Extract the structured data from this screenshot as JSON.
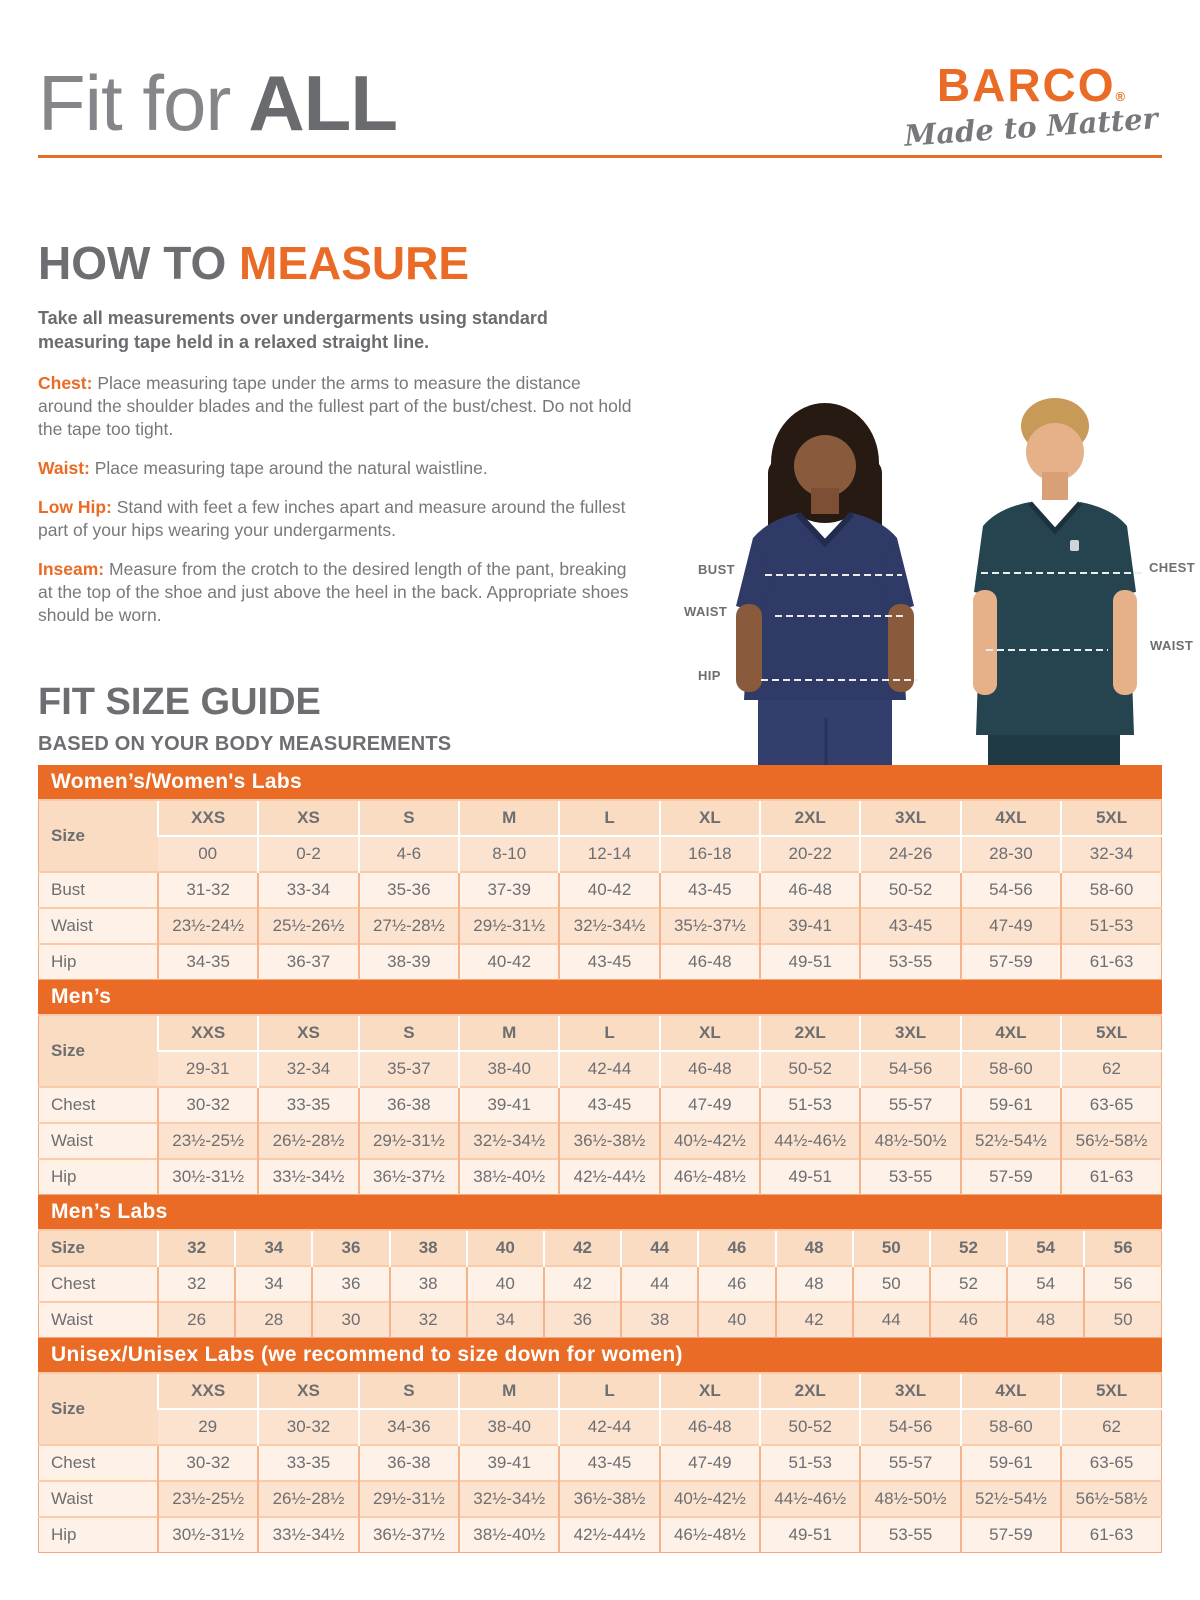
{
  "colors": {
    "brand_orange": "#E96B25",
    "heading_gray": "#6D6E71",
    "light_gray": "#84868A",
    "header_peach": "#FADCC2",
    "row_medium_peach": "#FBE3D0",
    "row_light_peach": "#FDF1E8",
    "woman_scrub_navy": "#2F3A66",
    "man_scrub_teal": "#264350"
  },
  "header": {
    "title_light": "Fit for",
    "title_bold": "ALL",
    "brand": "BARCO",
    "brand_reg": "®",
    "brand_tagline": "Made to Matter"
  },
  "how_to_measure": {
    "title_gray": "HOW TO",
    "title_orange": "MEASURE",
    "intro": "Take all measurements over undergarments using standard measuring tape held in a relaxed straight line.",
    "steps": [
      {
        "label": "Chest:",
        "text": "Place measuring tape under the arms to measure the distance around the shoulder blades and the fullest part of the bust/chest. Do not hold the tape too tight."
      },
      {
        "label": "Waist:",
        "text": "Place measuring tape around the natural waistline."
      },
      {
        "label": "Low Hip:",
        "text": "Stand with feet a few inches apart and measure around the fullest part of your hips wearing your undergarments."
      },
      {
        "label": "Inseam:",
        "text": "Measure from the crotch to the desired length of the pant, breaking at the top of the shoe and just above the heel in the back. Appropriate shoes should be worn."
      }
    ]
  },
  "figure": {
    "labels": {
      "bust": "BUST",
      "waist_left": "WAIST",
      "hip": "HIP",
      "chest": "CHEST",
      "waist_right": "WAIST"
    }
  },
  "size_guide": {
    "title": "FIT SIZE GUIDE",
    "subtitle": "BASED ON YOUR BODY MEASUREMENTS",
    "tables": [
      {
        "title": "Women’s/Women's Labs",
        "header": [
          "Size",
          "XXS",
          "XS",
          "S",
          "M",
          "L",
          "XL",
          "2XL",
          "3XL",
          "4XL",
          "5XL"
        ],
        "subheader": [
          "",
          "00",
          "0-2",
          "4-6",
          "8-10",
          "12-14",
          "16-18",
          "20-22",
          "24-26",
          "28-30",
          "32-34"
        ],
        "rows": [
          [
            "Bust",
            "31-32",
            "33-34",
            "35-36",
            "37-39",
            "40-42",
            "43-45",
            "46-48",
            "50-52",
            "54-56",
            "58-60"
          ],
          [
            "Waist",
            "23½-24½",
            "25½-26½",
            "27½-28½",
            "29½-31½",
            "32½-34½",
            "35½-37½",
            "39-41",
            "43-45",
            "47-49",
            "51-53"
          ],
          [
            "Hip",
            "34-35",
            "36-37",
            "38-39",
            "40-42",
            "43-45",
            "46-48",
            "49-51",
            "53-55",
            "57-59",
            "61-63"
          ]
        ]
      },
      {
        "title": "Men’s",
        "header": [
          "Size",
          "XXS",
          "XS",
          "S",
          "M",
          "L",
          "XL",
          "2XL",
          "3XL",
          "4XL",
          "5XL"
        ],
        "subheader": [
          "",
          "29-31",
          "32-34",
          "35-37",
          "38-40",
          "42-44",
          "46-48",
          "50-52",
          "54-56",
          "58-60",
          "62"
        ],
        "rows": [
          [
            "Chest",
            "30-32",
            "33-35",
            "36-38",
            "39-41",
            "43-45",
            "47-49",
            "51-53",
            "55-57",
            "59-61",
            "63-65"
          ],
          [
            "Waist",
            "23½-25½",
            "26½-28½",
            "29½-31½",
            "32½-34½",
            "36½-38½",
            "40½-42½",
            "44½-46½",
            "48½-50½",
            "52½-54½",
            "56½-58½"
          ],
          [
            "Hip",
            "30½-31½",
            "33½-34½",
            "36½-37½",
            "38½-40½",
            "42½-44½",
            "46½-48½",
            "49-51",
            "53-55",
            "57-59",
            "61-63"
          ]
        ]
      },
      {
        "title": "Men’s Labs",
        "header": [
          "Size",
          "32",
          "34",
          "36",
          "38",
          "40",
          "42",
          "44",
          "46",
          "48",
          "50",
          "52",
          "54",
          "56"
        ],
        "rows": [
          [
            "Chest",
            "32",
            "34",
            "36",
            "38",
            "40",
            "42",
            "44",
            "46",
            "48",
            "50",
            "52",
            "54",
            "56"
          ],
          [
            "Waist",
            "26",
            "28",
            "30",
            "32",
            "34",
            "36",
            "38",
            "40",
            "42",
            "44",
            "46",
            "48",
            "50"
          ]
        ]
      },
      {
        "title": "Unisex/Unisex Labs (we recommend to size down for women)",
        "header": [
          "Size",
          "XXS",
          "XS",
          "S",
          "M",
          "L",
          "XL",
          "2XL",
          "3XL",
          "4XL",
          "5XL"
        ],
        "subheader": [
          "",
          "29",
          "30-32",
          "34-36",
          "38-40",
          "42-44",
          "46-48",
          "50-52",
          "54-56",
          "58-60",
          "62"
        ],
        "rows": [
          [
            "Chest",
            "30-32",
            "33-35",
            "36-38",
            "39-41",
            "43-45",
            "47-49",
            "51-53",
            "55-57",
            "59-61",
            "63-65"
          ],
          [
            "Waist",
            "23½-25½",
            "26½-28½",
            "29½-31½",
            "32½-34½",
            "36½-38½",
            "40½-42½",
            "44½-46½",
            "48½-50½",
            "52½-54½",
            "56½-58½"
          ],
          [
            "Hip",
            "30½-31½",
            "33½-34½",
            "36½-37½",
            "38½-40½",
            "42½-44½",
            "46½-48½",
            "49-51",
            "53-55",
            "57-59",
            "61-63"
          ]
        ]
      }
    ]
  }
}
